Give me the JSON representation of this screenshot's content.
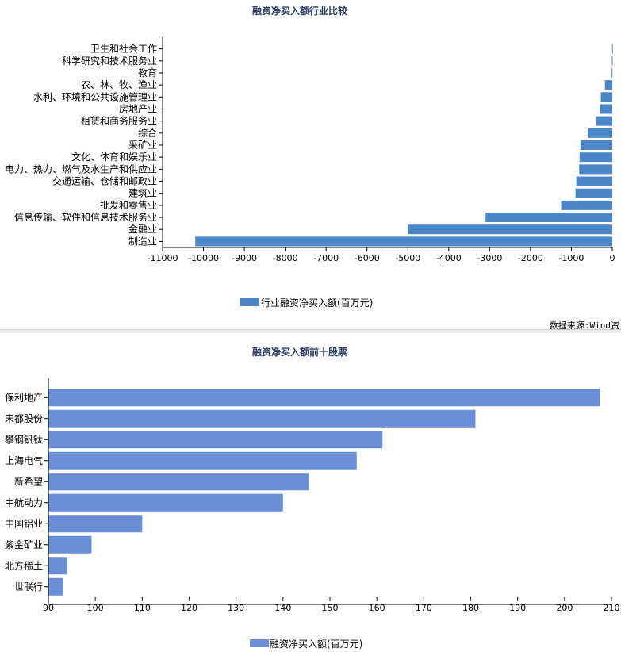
{
  "chart_data": [
    {
      "type": "bar",
      "orientation": "horizontal",
      "title": "融资净买入额行业比较",
      "categories": [
        "卫生和社会工作",
        "科学研究和技术服务业",
        "教育",
        "农、林、牧、渔业",
        "水利、环境和公共设施管理业",
        "房地产业",
        "租赁和商务服务业",
        "综合",
        "采矿业",
        "文化、体育和娱乐业",
        "电力、热力、燃气及水生产和供应业",
        "交通运输、仓储和邮政业",
        "建筑业",
        "批发和零售业",
        "信息传输、软件和信息技术服务业",
        "金融业",
        "制造业"
      ],
      "series": [
        {
          "name": "行业融资净买入额(百万元)",
          "values": [
            -5,
            -10,
            -15,
            -180,
            -280,
            -300,
            -400,
            -600,
            -780,
            -800,
            -810,
            -880,
            -900,
            -1250,
            -3100,
            -5000,
            -10200
          ]
        }
      ],
      "xlim": [
        -11000,
        0
      ],
      "xticks": [
        -11000,
        -10000,
        -9000,
        -8000,
        -7000,
        -6000,
        -5000,
        -4000,
        -3000,
        -2000,
        -1000,
        0
      ],
      "legend_position": "bottom",
      "bar_color": "#4a86c8",
      "source": "数据来源:Wind资"
    },
    {
      "type": "bar",
      "orientation": "horizontal",
      "title": "融资净买入额前十股票",
      "categories": [
        "保利地产",
        "宋都股份",
        "攀钢钒钛",
        "上海电气",
        "新希望",
        "中航动力",
        "中国铝业",
        "紫金矿业",
        "北方稀土",
        "世联行"
      ],
      "series": [
        {
          "name": "融资净买入额(百万元)",
          "values": [
            207.5,
            181,
            161.2,
            155.7,
            145.5,
            140,
            110,
            99.2,
            94,
            93.2
          ]
        }
      ],
      "xlim": [
        90,
        210
      ],
      "xticks": [
        90,
        100,
        110,
        120,
        130,
        140,
        150,
        160,
        170,
        180,
        190,
        200,
        210
      ],
      "legend_position": "bottom",
      "bar_color": "#6a8fd8"
    }
  ]
}
